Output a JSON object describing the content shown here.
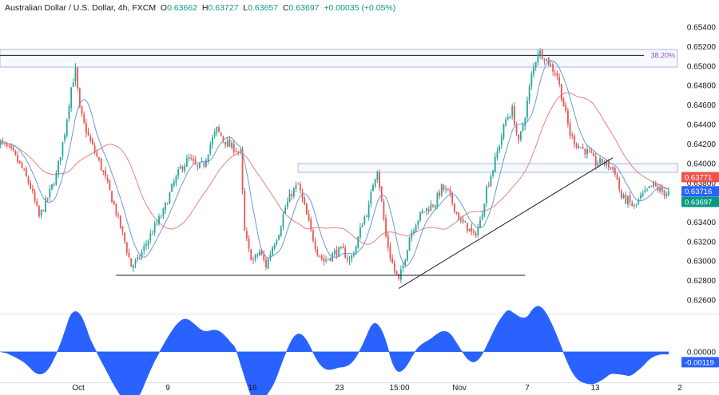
{
  "header": {
    "symbol": "Australian Dollar / U.S. Dollar, 4h, FXCM",
    "open_label": "O",
    "open": "0.63662",
    "high_label": "H",
    "high": "0.63727",
    "low_label": "L",
    "low": "0.63657",
    "close_label": "C",
    "close": "0.63697",
    "change": "+0.00035 (+0.05%)"
  },
  "colors": {
    "up": "#26a69a",
    "down": "#ef5350",
    "ma_fast": "#5b8fd8",
    "ma_slow": "#e57373",
    "oscillator": "#2962ff",
    "fib_line": "#7e57c2",
    "zone": "#a7b8d8"
  },
  "chart_data": [
    {
      "type": "candlestick",
      "title": "Australian Dollar / U.S. Dollar, 4h, FXCM",
      "x_axis_labels": [
        "Oct",
        "9",
        "16",
        "23",
        "15:00",
        "Nov",
        "7",
        "13",
        "2"
      ],
      "y_ticks": [
        "0.65400",
        "0.65200",
        "0.65000",
        "0.64800",
        "0.64600",
        "0.64400",
        "0.64200",
        "0.64000",
        "0.63800",
        "0.63600",
        "0.63400",
        "0.63200",
        "0.63000",
        "0.62800",
        "0.62600"
      ],
      "y_tick_values": [
        0.654,
        0.652,
        0.65,
        0.648,
        0.646,
        0.644,
        0.642,
        0.64,
        0.638,
        0.636,
        0.634,
        0.632,
        0.63,
        0.628,
        0.626
      ],
      "ylim": [
        0.6247,
        0.6553
      ],
      "price_labels": [
        {
          "text": "0.63771",
          "value": 0.63771,
          "color": "#ef5350"
        },
        {
          "text": "0.63716",
          "value": 0.63716,
          "color": "#2962ff"
        },
        {
          "text": "0.63697",
          "value": 0.63697,
          "color": "#089981"
        }
      ],
      "fib_label": "38.20%",
      "fib_level": 0.6511,
      "path_points": [
        [
          0,
          0.6425
        ],
        [
          4,
          0.6418
        ],
        [
          8,
          0.641
        ],
        [
          12,
          0.6395
        ],
        [
          16,
          0.6376
        ],
        [
          20,
          0.6345
        ],
        [
          24,
          0.6365
        ],
        [
          28,
          0.6388
        ],
        [
          32,
          0.6432
        ],
        [
          35,
          0.6478
        ],
        [
          37,
          0.6495
        ],
        [
          39,
          0.6455
        ],
        [
          41,
          0.644
        ],
        [
          44,
          0.6422
        ],
        [
          48,
          0.6402
        ],
        [
          52,
          0.6378
        ],
        [
          56,
          0.635
        ],
        [
          60,
          0.632
        ],
        [
          63,
          0.6295
        ],
        [
          66,
          0.63
        ],
        [
          70,
          0.6318
        ],
        [
          74,
          0.6335
        ],
        [
          78,
          0.635
        ],
        [
          82,
          0.6375
        ],
        [
          86,
          0.6395
        ],
        [
          90,
          0.6405
        ],
        [
          94,
          0.6395
        ],
        [
          97,
          0.64
        ],
        [
          100,
          0.642
        ],
        [
          103,
          0.6435
        ],
        [
          106,
          0.6425
        ],
        [
          109,
          0.6418
        ],
        [
          112,
          0.6415
        ],
        [
          114,
          0.641
        ],
        [
          116,
          0.633
        ],
        [
          118,
          0.631
        ],
        [
          120,
          0.63
        ],
        [
          123,
          0.631
        ],
        [
          126,
          0.6295
        ],
        [
          129,
          0.6315
        ],
        [
          132,
          0.633
        ],
        [
          135,
          0.6355
        ],
        [
          138,
          0.637
        ],
        [
          141,
          0.6378
        ],
        [
          144,
          0.6355
        ],
        [
          147,
          0.633
        ],
        [
          150,
          0.631
        ],
        [
          153,
          0.63
        ],
        [
          156,
          0.6305
        ],
        [
          159,
          0.631
        ],
        [
          162,
          0.631
        ],
        [
          165,
          0.63
        ],
        [
          168,
          0.6315
        ],
        [
          171,
          0.634
        ],
        [
          174,
          0.6355
        ],
        [
          176,
          0.638
        ],
        [
          178,
          0.6395
        ],
        [
          180,
          0.636
        ],
        [
          182,
          0.6325
        ],
        [
          184,
          0.6305
        ],
        [
          186,
          0.629
        ],
        [
          188,
          0.628
        ],
        [
          190,
          0.6295
        ],
        [
          193,
          0.6325
        ],
        [
          196,
          0.634
        ],
        [
          199,
          0.635
        ],
        [
          202,
          0.6355
        ],
        [
          205,
          0.636
        ],
        [
          208,
          0.6375
        ],
        [
          211,
          0.637
        ],
        [
          214,
          0.6355
        ],
        [
          217,
          0.634
        ],
        [
          220,
          0.6335
        ],
        [
          223,
          0.6325
        ],
        [
          226,
          0.634
        ],
        [
          229,
          0.6375
        ],
        [
          232,
          0.6395
        ],
        [
          235,
          0.642
        ],
        [
          238,
          0.6445
        ],
        [
          241,
          0.6455
        ],
        [
          244,
          0.642
        ],
        [
          247,
          0.645
        ],
        [
          250,
          0.649
        ],
        [
          253,
          0.6515
        ],
        [
          256,
          0.651
        ],
        [
          259,
          0.65
        ],
        [
          262,
          0.649
        ],
        [
          265,
          0.646
        ],
        [
          268,
          0.643
        ],
        [
          271,
          0.642
        ],
        [
          274,
          0.6415
        ],
        [
          277,
          0.641
        ],
        [
          280,
          0.64
        ],
        [
          283,
          0.6402
        ],
        [
          286,
          0.6398
        ],
        [
          289,
          0.6392
        ],
        [
          292,
          0.6365
        ],
        [
          295,
          0.6362
        ],
        [
          298,
          0.6355
        ],
        [
          301,
          0.6365
        ],
        [
          304,
          0.6372
        ],
        [
          307,
          0.6378
        ],
        [
          310,
          0.6372
        ],
        [
          313,
          0.637
        ]
      ],
      "annotations": [
        {
          "kind": "hline",
          "from": 55,
          "to": 246,
          "value": 0.62855
        },
        {
          "kind": "trendline",
          "x1": 187,
          "y1": 0.6272,
          "x2": 287,
          "y2": 0.6406
        }
      ],
      "zones": [
        {
          "from": 0,
          "to": 330,
          "top": 0.6517,
          "bottom": 0.6499
        },
        {
          "from": 140,
          "to": 330,
          "top": 0.64,
          "bottom": 0.6391
        }
      ]
    },
    {
      "type": "area",
      "title": "",
      "y_ticks": [
        "0.00000"
      ],
      "y_tick_values": [
        0
      ],
      "value_label": "-0.00119",
      "current_value": -0.00119,
      "ylim": [
        -0.003,
        0.0037
      ]
    }
  ]
}
